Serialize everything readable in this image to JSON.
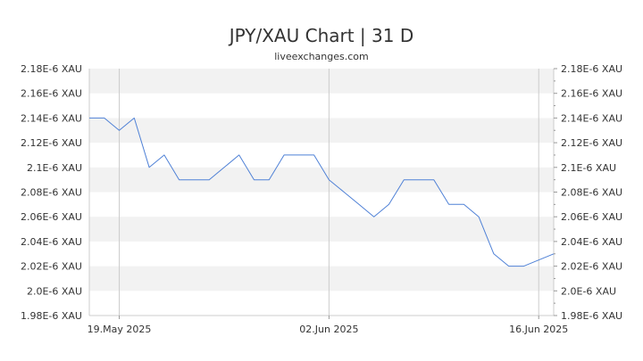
{
  "chart_data": {
    "type": "line",
    "title": "JPY/XAU Chart | 31 D",
    "subtitle": "liveexchanges.com",
    "xlabel": "",
    "ylabel": "",
    "ylim": [
      1.98e-06,
      2.18e-06
    ],
    "y_ticks": [
      {
        "value": 1.98e-06,
        "label": "1.98E-6 XAU"
      },
      {
        "value": 2e-06,
        "label": "2.0E-6 XAU"
      },
      {
        "value": 2.02e-06,
        "label": "2.02E-6 XAU"
      },
      {
        "value": 2.04e-06,
        "label": "2.04E-6 XAU"
      },
      {
        "value": 2.06e-06,
        "label": "2.06E-6 XAU"
      },
      {
        "value": 2.08e-06,
        "label": "2.08E-6 XAU"
      },
      {
        "value": 2.1e-06,
        "label": "2.1E-6 XAU"
      },
      {
        "value": 2.12e-06,
        "label": "2.12E-6 XAU"
      },
      {
        "value": 2.14e-06,
        "label": "2.14E-6 XAU"
      },
      {
        "value": 2.16e-06,
        "label": "2.16E-6 XAU"
      },
      {
        "value": 2.18e-06,
        "label": "2.18E-6 XAU"
      }
    ],
    "x_ticks": [
      {
        "date": "2025-05-19",
        "label": "19.May 2025"
      },
      {
        "date": "2025-06-02",
        "label": "02.Jun 2025"
      },
      {
        "date": "2025-06-16",
        "label": "16.Jun 2025"
      }
    ],
    "x_range": [
      "2025-05-17",
      "2025-06-17"
    ],
    "grid": "horizontal bands",
    "legend": "none",
    "colors": {
      "line": "#4f81d6",
      "band": "#f2f2f2",
      "axis": "#cccccc",
      "text": "#333333"
    },
    "series": [
      {
        "points": [
          {
            "x": "2025-05-17",
            "y": 2.14e-06
          },
          {
            "x": "2025-05-18",
            "y": 2.14e-06
          },
          {
            "x": "2025-05-19",
            "y": 2.13e-06
          },
          {
            "x": "2025-05-20",
            "y": 2.14e-06
          },
          {
            "x": "2025-05-21",
            "y": 2.1e-06
          },
          {
            "x": "2025-05-22",
            "y": 2.11e-06
          },
          {
            "x": "2025-05-23",
            "y": 2.09e-06
          },
          {
            "x": "2025-05-24",
            "y": 2.09e-06
          },
          {
            "x": "2025-05-25",
            "y": 2.09e-06
          },
          {
            "x": "2025-05-26",
            "y": 2.1e-06
          },
          {
            "x": "2025-05-27",
            "y": 2.11e-06
          },
          {
            "x": "2025-05-28",
            "y": 2.09e-06
          },
          {
            "x": "2025-05-29",
            "y": 2.09e-06
          },
          {
            "x": "2025-05-30",
            "y": 2.11e-06
          },
          {
            "x": "2025-05-31",
            "y": 2.11e-06
          },
          {
            "x": "2025-06-01",
            "y": 2.11e-06
          },
          {
            "x": "2025-06-02",
            "y": 2.09e-06
          },
          {
            "x": "2025-06-03",
            "y": 2.08e-06
          },
          {
            "x": "2025-06-04",
            "y": 2.07e-06
          },
          {
            "x": "2025-06-05",
            "y": 2.06e-06
          },
          {
            "x": "2025-06-06",
            "y": 2.07e-06
          },
          {
            "x": "2025-06-07",
            "y": 2.09e-06
          },
          {
            "x": "2025-06-08",
            "y": 2.09e-06
          },
          {
            "x": "2025-06-09",
            "y": 2.09e-06
          },
          {
            "x": "2025-06-10",
            "y": 2.07e-06
          },
          {
            "x": "2025-06-11",
            "y": 2.07e-06
          },
          {
            "x": "2025-06-12",
            "y": 2.06e-06
          },
          {
            "x": "2025-06-13",
            "y": 2.03e-06
          },
          {
            "x": "2025-06-14",
            "y": 2.02e-06
          },
          {
            "x": "2025-06-15",
            "y": 2.02e-06
          },
          {
            "x": "2025-06-16",
            "y": 2.025e-06
          },
          {
            "x": "2025-06-17",
            "y": 2.03e-06
          }
        ]
      }
    ]
  }
}
